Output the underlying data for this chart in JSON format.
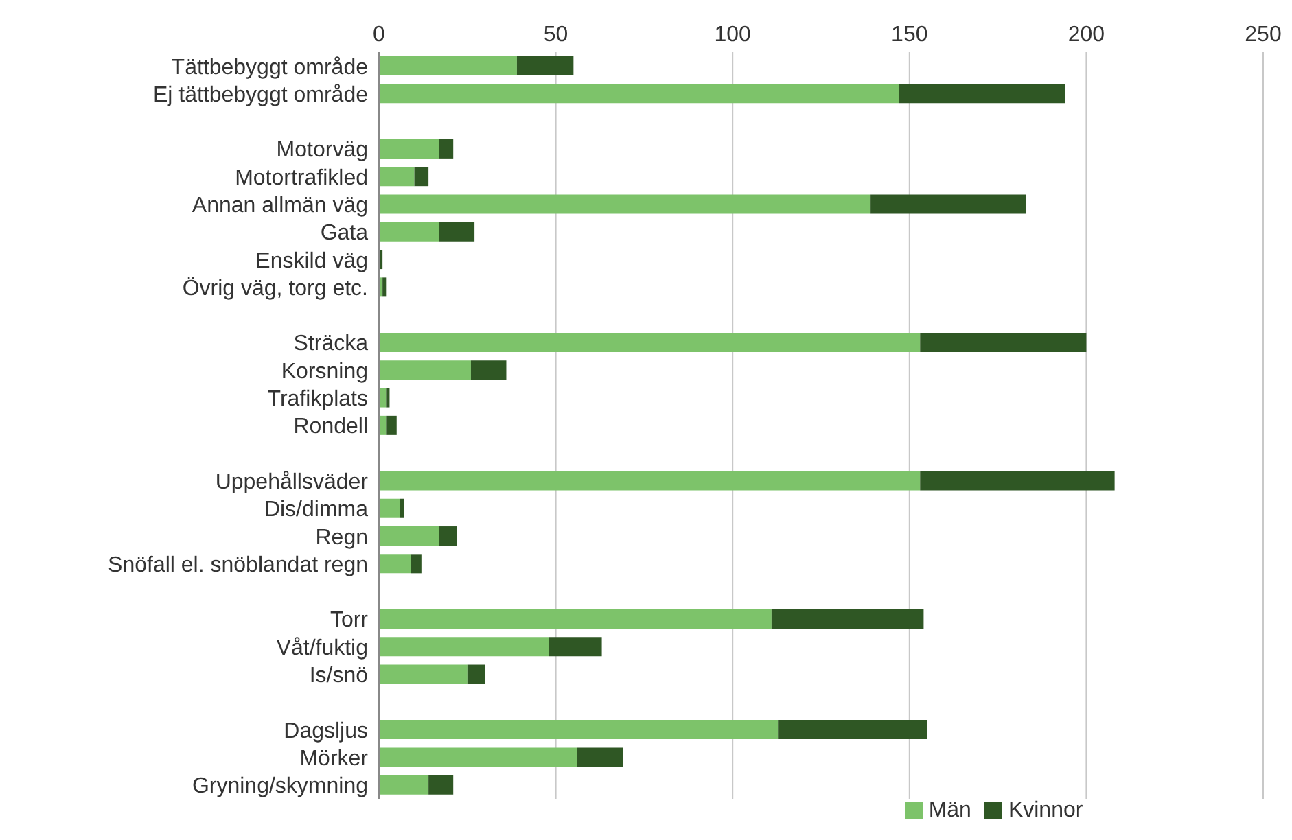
{
  "chart_data": {
    "type": "bar",
    "orientation": "horizontal",
    "stacked": true,
    "categories": [
      "Tättbebyggt område",
      "Ej tättbebyggt område",
      null,
      "Motorväg",
      "Motortrafikled",
      "Annan allmän väg",
      "Gata",
      "Enskild väg",
      "Övrig väg, torg etc.",
      null,
      "Sträcka",
      "Korsning",
      "Trafikplats",
      "Rondell",
      null,
      "Uppehållsväder",
      "Dis/dimma",
      "Regn",
      "Snöfall el. snöblandat regn",
      null,
      "Torr",
      "Våt/fuktig",
      "Is/snö",
      null,
      "Dagsljus",
      "Mörker",
      "Gryning/skymning"
    ],
    "series": [
      {
        "name": "Män",
        "color": "#7dc36a",
        "values": [
          39,
          147,
          null,
          17,
          10,
          139,
          17,
          0,
          1,
          null,
          153,
          26,
          2,
          2,
          null,
          153,
          6,
          17,
          9,
          null,
          111,
          48,
          25,
          null,
          113,
          56,
          14
        ]
      },
      {
        "name": "Kvinnor",
        "color": "#2f5724",
        "values": [
          16,
          47,
          null,
          4,
          4,
          44,
          10,
          1,
          1,
          null,
          47,
          10,
          1,
          3,
          null,
          55,
          1,
          5,
          3,
          null,
          43,
          15,
          5,
          null,
          42,
          13,
          7
        ]
      }
    ],
    "xlim": [
      0,
      250
    ],
    "xticks": [
      0,
      50,
      100,
      150,
      200,
      250
    ],
    "grid": "x",
    "legend": "bottom"
  }
}
